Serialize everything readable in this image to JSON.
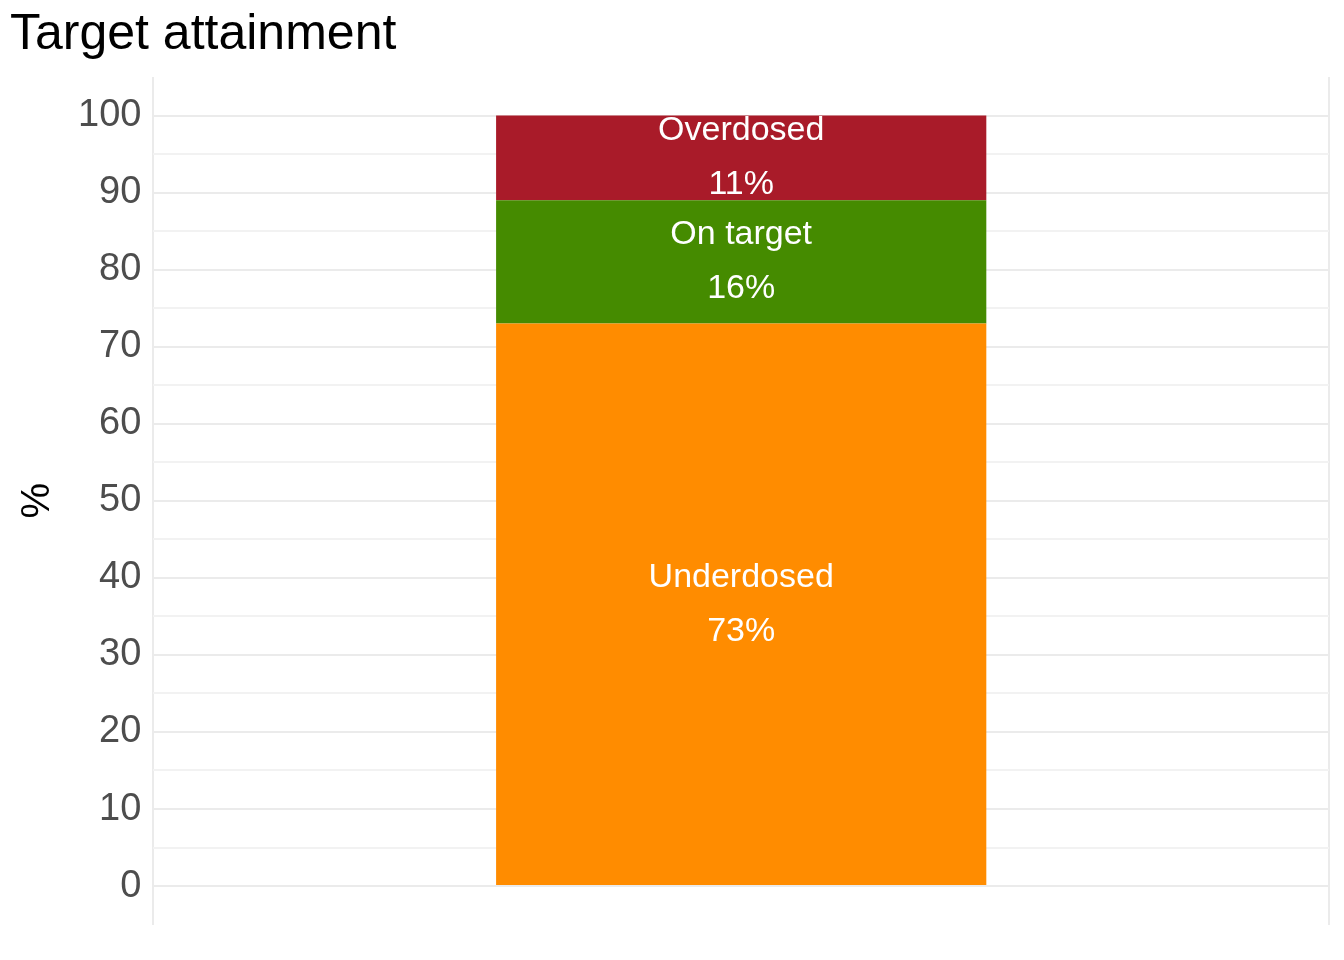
{
  "chart_data": {
    "type": "bar",
    "title": "Target attainment",
    "ylabel": "%",
    "categories": [
      null
    ],
    "stacked": true,
    "series": [
      {
        "name": "Underdosed",
        "color": "#ff8c00",
        "values": [
          73
        ],
        "value_labels": [
          "73%"
        ]
      },
      {
        "name": "On target",
        "color": "#458b00",
        "values": [
          16
        ],
        "value_labels": [
          "16%"
        ]
      },
      {
        "name": "Overdosed",
        "color": "#a91b29",
        "values": [
          11
        ],
        "value_labels": [
          "11%"
        ]
      }
    ],
    "ylim": [
      -5,
      105
    ],
    "yticks": [
      0,
      {
        "value": 5,
        "label": null
      },
      10,
      {
        "value": 15,
        "label": null
      },
      20,
      {
        "value": 25,
        "label": null
      },
      30,
      {
        "value": 35,
        "label": null
      },
      40,
      {
        "value": 45,
        "label": null
      },
      50,
      {
        "value": 55,
        "label": null
      },
      60,
      {
        "value": 65,
        "label": null
      },
      70,
      {
        "value": 75,
        "label": null
      },
      80,
      {
        "value": 85,
        "label": null
      },
      90,
      {
        "value": 95,
        "label": null
      },
      100
    ],
    "grid": true,
    "legend": false
  }
}
